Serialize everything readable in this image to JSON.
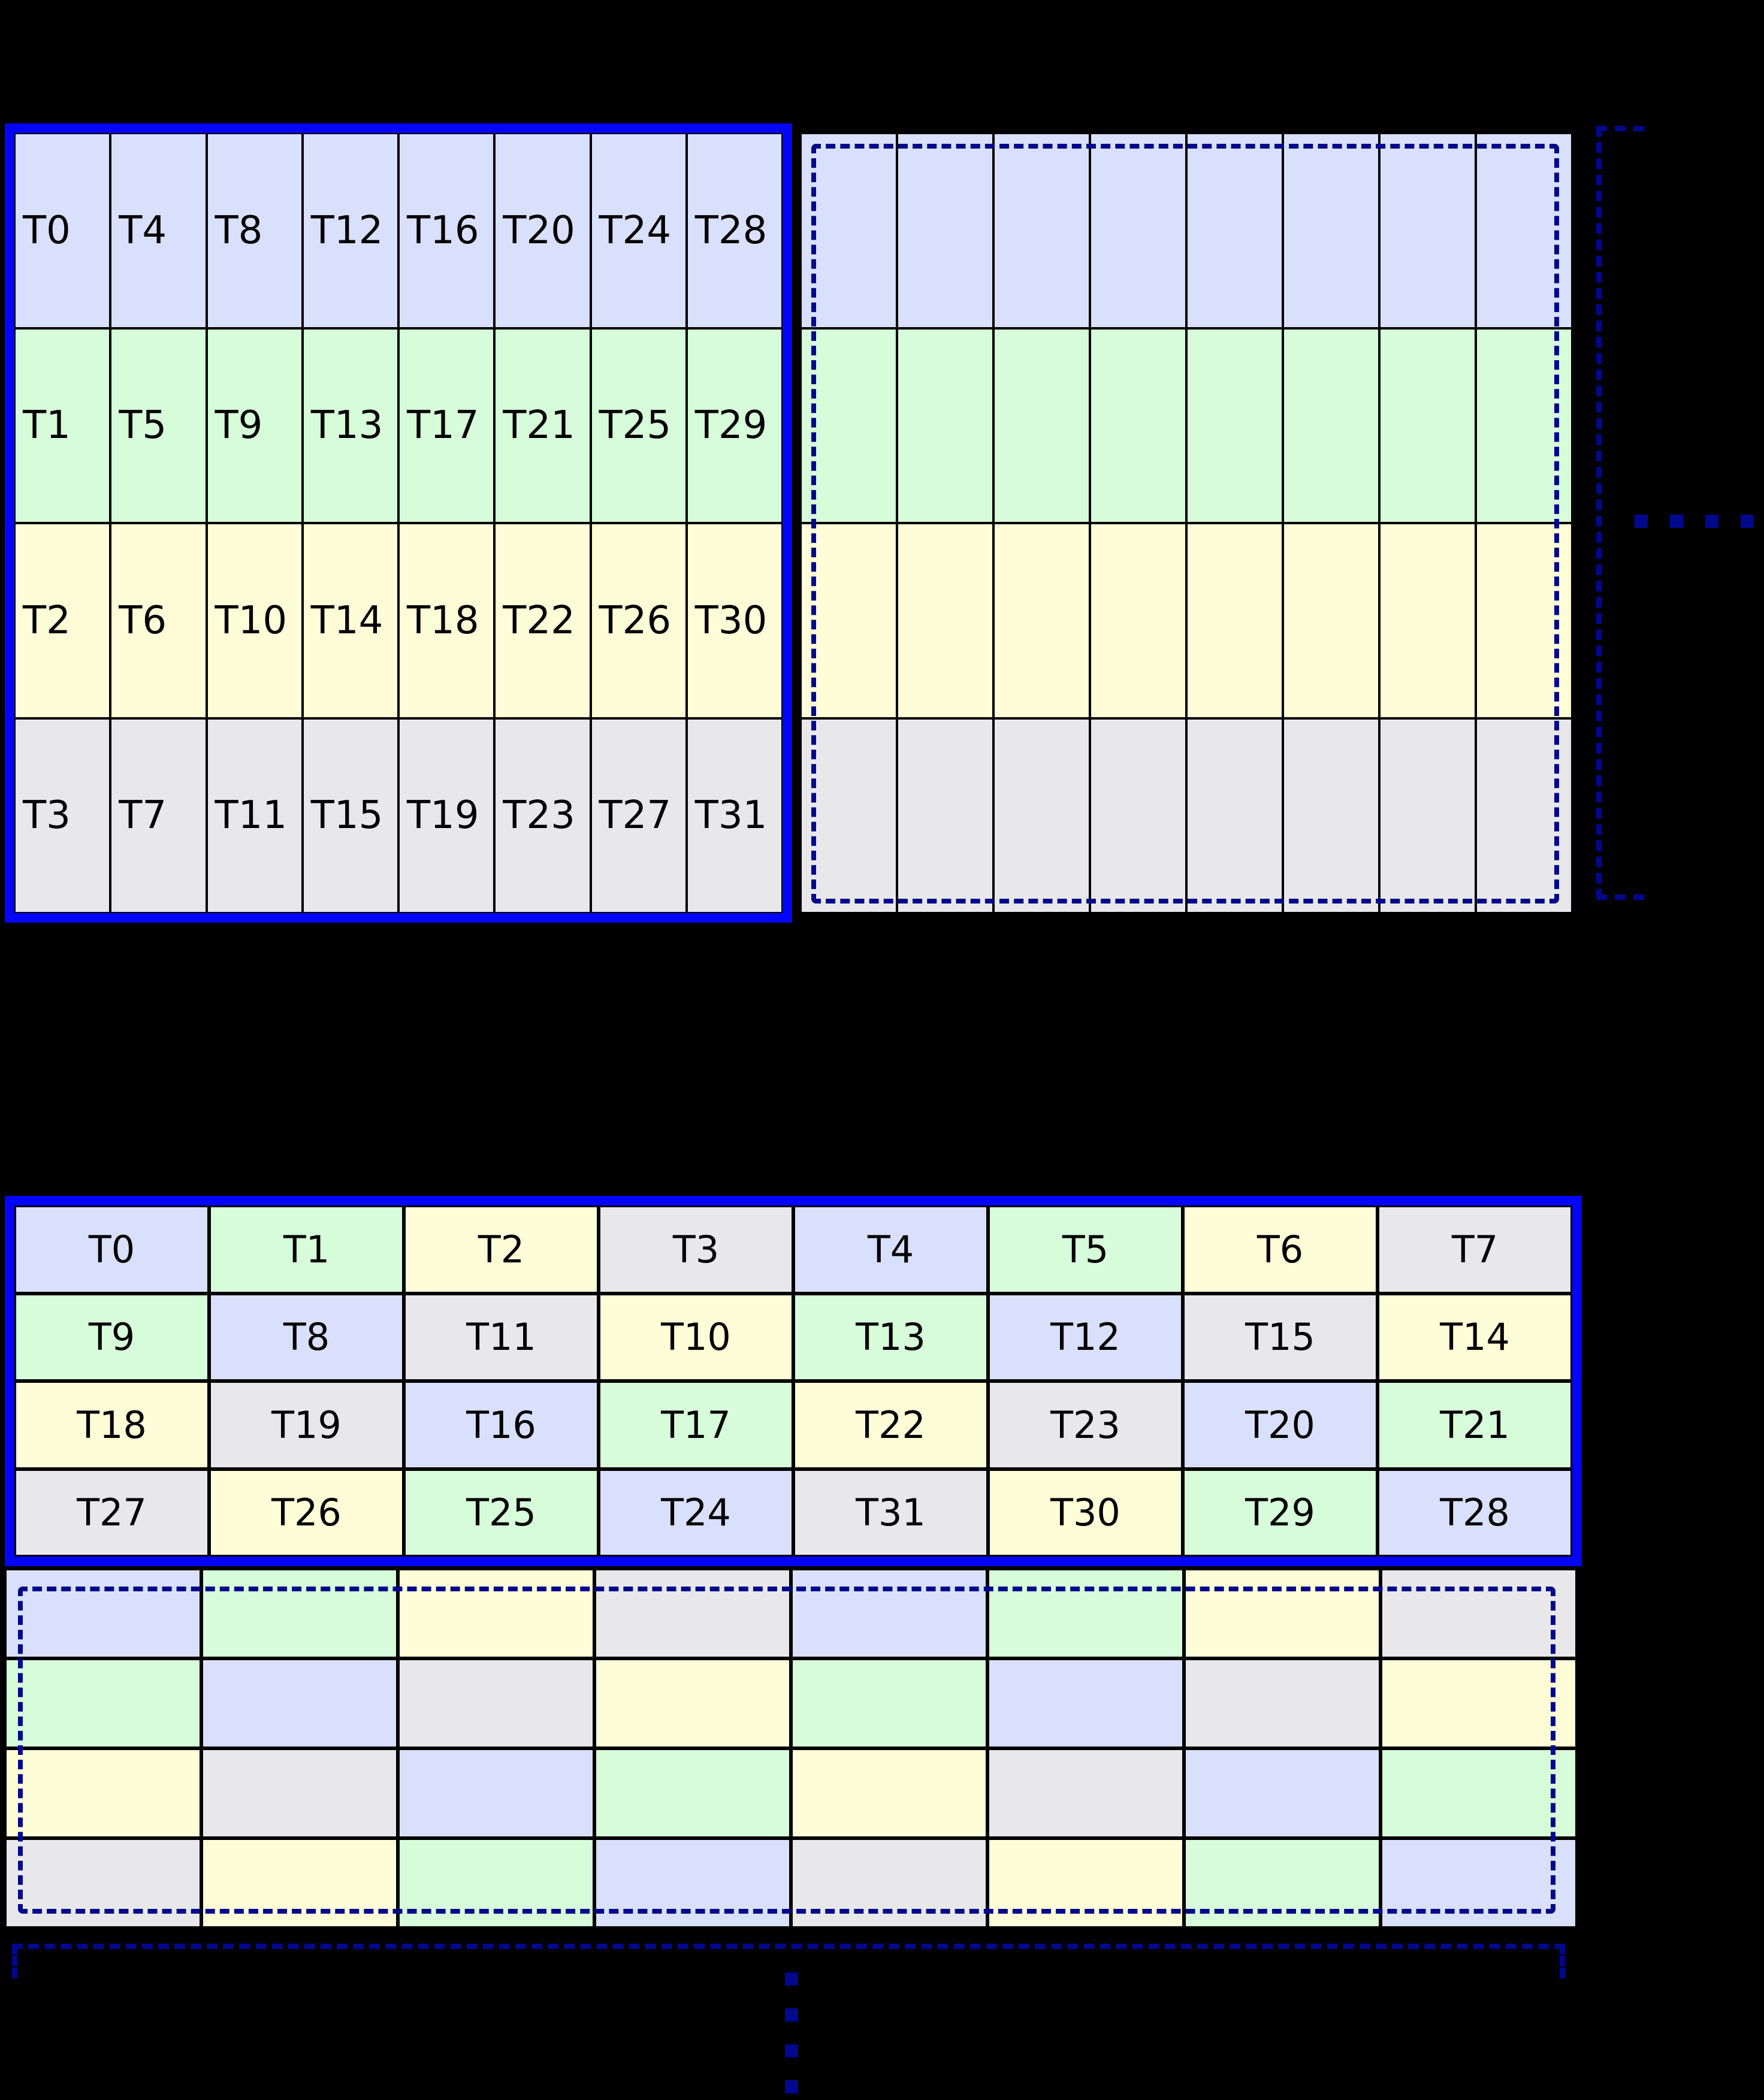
{
  "palette": {
    "blue": "#d9e0fb",
    "green": "#d7fcd9",
    "yellow": "#fdfdd8",
    "gray": "#e8e8ea",
    "solid_border": "#0404f8",
    "dashed_navy": "#00098b",
    "cell_border": "#000000",
    "label_color": "#000000",
    "background": "#000000"
  },
  "top_section": {
    "thread_grid_column_major": {
      "description": "4x8 warp tile, threads numbered column-major, solid blue frame",
      "cells": [
        [
          {
            "l": "T0",
            "c": "blue"
          },
          {
            "l": "T4",
            "c": "blue"
          },
          {
            "l": "T8",
            "c": "blue"
          },
          {
            "l": "T12",
            "c": "blue"
          },
          {
            "l": "T16",
            "c": "blue"
          },
          {
            "l": "T20",
            "c": "blue"
          },
          {
            "l": "T24",
            "c": "blue"
          },
          {
            "l": "T28",
            "c": "blue"
          }
        ],
        [
          {
            "l": "T1",
            "c": "green"
          },
          {
            "l": "T5",
            "c": "green"
          },
          {
            "l": "T9",
            "c": "green"
          },
          {
            "l": "T13",
            "c": "green"
          },
          {
            "l": "T17",
            "c": "green"
          },
          {
            "l": "T21",
            "c": "green"
          },
          {
            "l": "T25",
            "c": "green"
          },
          {
            "l": "T29",
            "c": "green"
          }
        ],
        [
          {
            "l": "T2",
            "c": "yellow"
          },
          {
            "l": "T6",
            "c": "yellow"
          },
          {
            "l": "T10",
            "c": "yellow"
          },
          {
            "l": "T14",
            "c": "yellow"
          },
          {
            "l": "T18",
            "c": "yellow"
          },
          {
            "l": "T22",
            "c": "yellow"
          },
          {
            "l": "T26",
            "c": "yellow"
          },
          {
            "l": "T30",
            "c": "yellow"
          }
        ],
        [
          {
            "l": "T3",
            "c": "gray"
          },
          {
            "l": "T7",
            "c": "gray"
          },
          {
            "l": "T11",
            "c": "gray"
          },
          {
            "l": "T15",
            "c": "gray"
          },
          {
            "l": "T19",
            "c": "gray"
          },
          {
            "l": "T23",
            "c": "gray"
          },
          {
            "l": "T27",
            "c": "gray"
          },
          {
            "l": "T31",
            "c": "gray"
          }
        ]
      ]
    },
    "repeat_tile_grid": {
      "description": "unlabeled repeat of the 4x8 tile with dashed navy boundary",
      "cells": [
        [
          {
            "l": "",
            "c": "blue"
          },
          {
            "l": "",
            "c": "blue"
          },
          {
            "l": "",
            "c": "blue"
          },
          {
            "l": "",
            "c": "blue"
          },
          {
            "l": "",
            "c": "blue"
          },
          {
            "l": "",
            "c": "blue"
          },
          {
            "l": "",
            "c": "blue"
          },
          {
            "l": "",
            "c": "blue"
          }
        ],
        [
          {
            "l": "",
            "c": "green"
          },
          {
            "l": "",
            "c": "green"
          },
          {
            "l": "",
            "c": "green"
          },
          {
            "l": "",
            "c": "green"
          },
          {
            "l": "",
            "c": "green"
          },
          {
            "l": "",
            "c": "green"
          },
          {
            "l": "",
            "c": "green"
          },
          {
            "l": "",
            "c": "green"
          }
        ],
        [
          {
            "l": "",
            "c": "yellow"
          },
          {
            "l": "",
            "c": "yellow"
          },
          {
            "l": "",
            "c": "yellow"
          },
          {
            "l": "",
            "c": "yellow"
          },
          {
            "l": "",
            "c": "yellow"
          },
          {
            "l": "",
            "c": "yellow"
          },
          {
            "l": "",
            "c": "yellow"
          },
          {
            "l": "",
            "c": "yellow"
          }
        ],
        [
          {
            "l": "",
            "c": "gray"
          },
          {
            "l": "",
            "c": "gray"
          },
          {
            "l": "",
            "c": "gray"
          },
          {
            "l": "",
            "c": "gray"
          },
          {
            "l": "",
            "c": "gray"
          },
          {
            "l": "",
            "c": "gray"
          },
          {
            "l": "",
            "c": "gray"
          },
          {
            "l": "",
            "c": "gray"
          }
        ]
      ]
    },
    "continuation_dots": 4
  },
  "bottom_section": {
    "thread_grid_swizzled": {
      "description": "4x8 warp tile with XOR-swizzled thread placement, solid blue frame",
      "cells": [
        [
          {
            "l": "T0",
            "c": "blue"
          },
          {
            "l": "T1",
            "c": "green"
          },
          {
            "l": "T2",
            "c": "yellow"
          },
          {
            "l": "T3",
            "c": "gray"
          },
          {
            "l": "T4",
            "c": "blue"
          },
          {
            "l": "T5",
            "c": "green"
          },
          {
            "l": "T6",
            "c": "yellow"
          },
          {
            "l": "T7",
            "c": "gray"
          }
        ],
        [
          {
            "l": "T9",
            "c": "green"
          },
          {
            "l": "T8",
            "c": "blue"
          },
          {
            "l": "T11",
            "c": "gray"
          },
          {
            "l": "T10",
            "c": "yellow"
          },
          {
            "l": "T13",
            "c": "green"
          },
          {
            "l": "T12",
            "c": "blue"
          },
          {
            "l": "T15",
            "c": "gray"
          },
          {
            "l": "T14",
            "c": "yellow"
          }
        ],
        [
          {
            "l": "T18",
            "c": "yellow"
          },
          {
            "l": "T19",
            "c": "gray"
          },
          {
            "l": "T16",
            "c": "blue"
          },
          {
            "l": "T17",
            "c": "green"
          },
          {
            "l": "T22",
            "c": "yellow"
          },
          {
            "l": "T23",
            "c": "gray"
          },
          {
            "l": "T20",
            "c": "blue"
          },
          {
            "l": "T21",
            "c": "green"
          }
        ],
        [
          {
            "l": "T27",
            "c": "gray"
          },
          {
            "l": "T26",
            "c": "yellow"
          },
          {
            "l": "T25",
            "c": "green"
          },
          {
            "l": "T24",
            "c": "blue"
          },
          {
            "l": "T31",
            "c": "gray"
          },
          {
            "l": "T30",
            "c": "yellow"
          },
          {
            "l": "T29",
            "c": "green"
          },
          {
            "l": "T28",
            "c": "blue"
          }
        ]
      ]
    },
    "repeat_tile_grid": {
      "description": "unlabeled repeat of the swizzled 4x8 tile with dashed navy boundary",
      "cells": [
        [
          {
            "l": "",
            "c": "blue"
          },
          {
            "l": "",
            "c": "green"
          },
          {
            "l": "",
            "c": "yellow"
          },
          {
            "l": "",
            "c": "gray"
          },
          {
            "l": "",
            "c": "blue"
          },
          {
            "l": "",
            "c": "green"
          },
          {
            "l": "",
            "c": "yellow"
          },
          {
            "l": "",
            "c": "gray"
          }
        ],
        [
          {
            "l": "",
            "c": "green"
          },
          {
            "l": "",
            "c": "blue"
          },
          {
            "l": "",
            "c": "gray"
          },
          {
            "l": "",
            "c": "yellow"
          },
          {
            "l": "",
            "c": "green"
          },
          {
            "l": "",
            "c": "blue"
          },
          {
            "l": "",
            "c": "gray"
          },
          {
            "l": "",
            "c": "yellow"
          }
        ],
        [
          {
            "l": "",
            "c": "yellow"
          },
          {
            "l": "",
            "c": "gray"
          },
          {
            "l": "",
            "c": "blue"
          },
          {
            "l": "",
            "c": "green"
          },
          {
            "l": "",
            "c": "yellow"
          },
          {
            "l": "",
            "c": "gray"
          },
          {
            "l": "",
            "c": "blue"
          },
          {
            "l": "",
            "c": "green"
          }
        ],
        [
          {
            "l": "",
            "c": "gray"
          },
          {
            "l": "",
            "c": "yellow"
          },
          {
            "l": "",
            "c": "green"
          },
          {
            "l": "",
            "c": "blue"
          },
          {
            "l": "",
            "c": "gray"
          },
          {
            "l": "",
            "c": "yellow"
          },
          {
            "l": "",
            "c": "green"
          },
          {
            "l": "",
            "c": "blue"
          }
        ]
      ]
    },
    "continuation_dots": 4
  }
}
